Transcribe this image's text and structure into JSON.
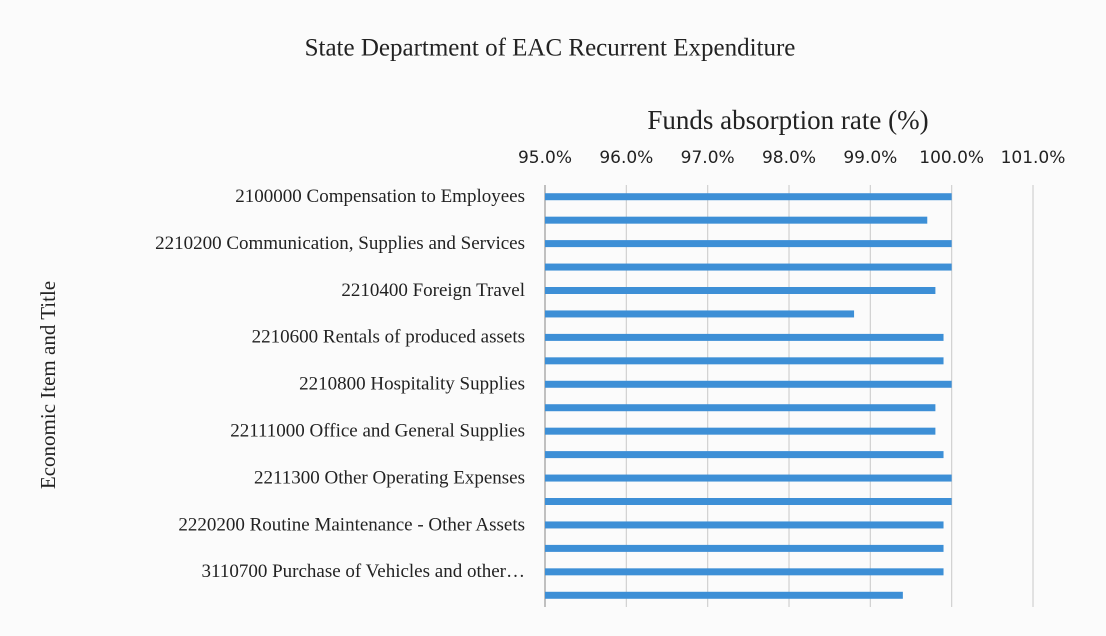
{
  "chart_data": {
    "type": "barh",
    "title": "State Department of EAC Recurrent Expenditure",
    "x_label": "Funds absorption rate (%)",
    "y_label": "Economic Item and Title",
    "categories": [
      "2100000 Compensation to Employees",
      null,
      "2210200 Communication, Supplies and Services",
      null,
      "2210400 Foreign Travel",
      null,
      "2210600 Rentals of produced assets",
      null,
      "2210800 Hospitality Supplies",
      null,
      "22111000 Office and General Supplies",
      null,
      "2211300 Other Operating Expenses",
      null,
      "2220200 Routine Maintenance - Other Assets",
      null,
      "3110700 Purchase of Vehicles and other…",
      null
    ],
    "values": [
      100.0,
      99.7,
      100.0,
      100.0,
      99.8,
      98.8,
      99.9,
      99.9,
      100.0,
      99.8,
      99.8,
      99.9,
      100.0,
      100.0,
      99.9,
      99.9,
      99.9,
      99.4
    ],
    "color": "#3d8fd6",
    "xlim": [
      95,
      101
    ],
    "xticks": [
      {
        "value": 95,
        "label": "95.0%"
      },
      {
        "value": 96,
        "label": "96.0%"
      },
      {
        "value": 97,
        "label": "97.0%"
      },
      {
        "value": 98,
        "label": "98.0%"
      },
      {
        "value": 99,
        "label": "99.0%"
      },
      {
        "value": 100,
        "label": "100.0%"
      },
      {
        "value": 101,
        "label": "101.0%"
      }
    ],
    "grid": true
  }
}
